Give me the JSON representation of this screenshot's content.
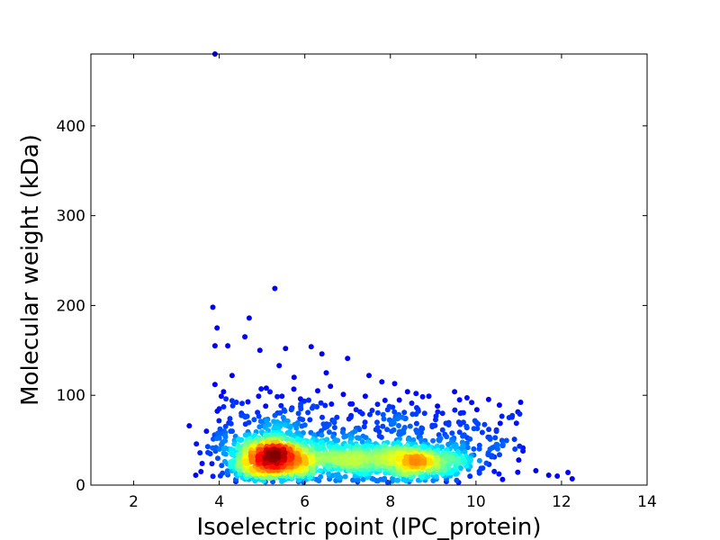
{
  "chart_data": {
    "type": "scatter",
    "title": "",
    "xlabel": "Isoelectric point (IPC_protein)",
    "ylabel": "Molecular weight (kDa)",
    "xlim": [
      1,
      14
    ],
    "ylim": [
      0,
      480
    ],
    "xticks": [
      2,
      4,
      6,
      8,
      10,
      12,
      14
    ],
    "yticks": [
      0,
      100,
      200,
      300,
      400
    ],
    "xtick_labels": [
      "2",
      "4",
      "6",
      "8",
      "10",
      "12",
      "14"
    ],
    "ytick_labels": [
      "0",
      "100",
      "200",
      "300",
      "400"
    ],
    "grid": false,
    "legend": "none",
    "colormap": "jet (point density)",
    "clusters": [
      {
        "center_x": 5.3,
        "center_y": 30,
        "spread_x": 0.55,
        "spread_y": 14,
        "count": 1100
      },
      {
        "center_x": 8.5,
        "center_y": 25,
        "spread_x": 0.75,
        "spread_y": 12,
        "count": 750
      },
      {
        "center_x": 6.9,
        "center_y": 28,
        "spread_x": 0.45,
        "spread_y": 12,
        "count": 220
      }
    ],
    "outlier_points": [
      [
        3.9,
        480
      ],
      [
        5.3,
        219
      ],
      [
        3.85,
        198
      ],
      [
        4.7,
        186
      ],
      [
        3.95,
        175
      ],
      [
        4.6,
        165
      ],
      [
        5.55,
        152
      ],
      [
        6.15,
        154
      ],
      [
        3.9,
        155
      ],
      [
        4.2,
        155
      ],
      [
        4.95,
        150
      ],
      [
        7.0,
        141
      ],
      [
        6.4,
        146
      ],
      [
        5.4,
        133
      ],
      [
        6.5,
        125
      ],
      [
        7.5,
        122
      ],
      [
        4.3,
        122
      ],
      [
        7.8,
        115
      ],
      [
        8.1,
        113
      ],
      [
        3.9,
        112
      ],
      [
        6.6,
        110
      ],
      [
        5.75,
        120
      ],
      [
        4.1,
        104
      ],
      [
        8.4,
        104
      ],
      [
        9.5,
        104
      ],
      [
        8.6,
        102
      ],
      [
        6.9,
        101
      ],
      [
        9.9,
        92
      ],
      [
        9.1,
        88
      ],
      [
        7.7,
        90
      ],
      [
        3.3,
        66
      ],
      [
        3.45,
        11
      ],
      [
        3.55,
        36
      ],
      [
        10.9,
        51
      ],
      [
        11.1,
        38
      ],
      [
        11.4,
        16
      ],
      [
        11.7,
        11
      ],
      [
        12.15,
        14
      ],
      [
        12.25,
        7
      ],
      [
        11.9,
        10
      ],
      [
        10.3,
        62
      ],
      [
        10.05,
        68
      ],
      [
        4.0,
        85
      ],
      [
        4.3,
        94
      ],
      [
        5.1,
        108
      ],
      [
        5.9,
        96
      ],
      [
        6.3,
        105
      ],
      [
        7.2,
        84
      ],
      [
        8.8,
        80
      ],
      [
        9.6,
        70
      ],
      [
        10.5,
        45
      ],
      [
        11.0,
        28
      ],
      [
        3.7,
        60
      ],
      [
        3.6,
        24
      ]
    ]
  }
}
